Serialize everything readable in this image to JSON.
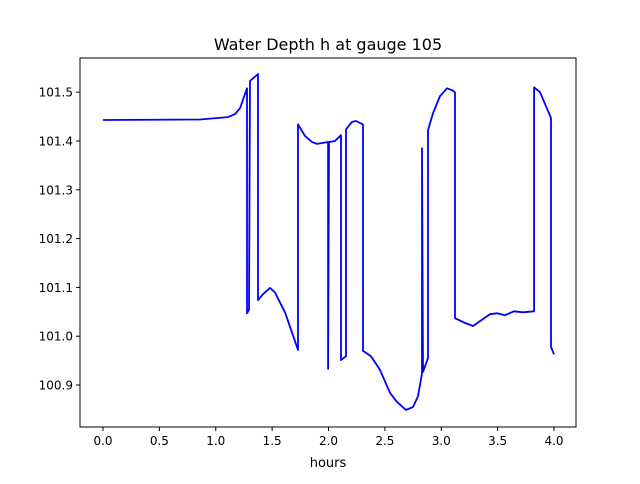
{
  "chart_data": {
    "type": "line",
    "title": "Water Depth h at gauge 105",
    "xlabel": "hours",
    "ylabel": "",
    "xlim": [
      -0.204,
      4.195
    ],
    "ylim": [
      100.814,
      101.57
    ],
    "grid": false,
    "x_ticks": [
      0.0,
      0.5,
      1.0,
      1.5,
      2.0,
      2.5,
      3.0,
      3.5,
      4.0
    ],
    "x_tick_labels": [
      "0.0",
      "0.5",
      "1.0",
      "1.5",
      "2.0",
      "2.5",
      "3.0",
      "3.5",
      "4.0"
    ],
    "y_ticks": [
      100.9,
      101.0,
      101.1,
      101.2,
      101.3,
      101.4,
      101.5
    ],
    "y_tick_labels": [
      "100.9",
      "101.0",
      "101.1",
      "101.2",
      "101.3",
      "101.4",
      "101.5"
    ],
    "series": [
      {
        "name": "h",
        "color": "#0000ff",
        "x": [
          0,
          0.86,
          1.109,
          1.171,
          1.215,
          1.277,
          1.277,
          1.295,
          1.304,
          1.375,
          1.375,
          1.419,
          1.481,
          1.525,
          1.614,
          1.668,
          1.729,
          1.729,
          1.792,
          1.854,
          1.898,
          1.996,
          1.996,
          2.004,
          2.058,
          2.111,
          2.111,
          2.155,
          2.155,
          2.208,
          2.244,
          2.306,
          2.306,
          2.377,
          2.457,
          2.545,
          2.608,
          2.687,
          2.749,
          2.794,
          2.829,
          2.829,
          2.838,
          2.882,
          2.882,
          2.927,
          2.989,
          3.051,
          3.096,
          3.122,
          3.122,
          3.211,
          3.282,
          3.344,
          3.432,
          3.494,
          3.565,
          3.645,
          3.725,
          3.823,
          3.823,
          3.876,
          3.973,
          3.973,
          4.0
        ],
        "y": [
          101.443,
          101.444,
          101.449,
          101.455,
          101.467,
          101.508,
          101.047,
          101.054,
          101.523,
          101.537,
          101.074,
          101.086,
          101.099,
          101.09,
          101.049,
          101.013,
          100.972,
          101.434,
          101.41,
          101.398,
          101.394,
          101.398,
          100.933,
          101.398,
          101.4,
          101.412,
          100.951,
          100.959,
          101.424,
          101.439,
          101.441,
          101.434,
          100.97,
          100.959,
          100.931,
          100.884,
          100.865,
          100.849,
          100.855,
          100.877,
          100.924,
          101.385,
          100.927,
          100.955,
          101.422,
          101.457,
          101.492,
          101.508,
          101.504,
          101.5,
          101.037,
          101.027,
          101.021,
          101.031,
          101.045,
          101.047,
          101.043,
          101.051,
          101.049,
          101.051,
          101.51,
          101.5,
          101.447,
          100.978,
          100.963
        ]
      }
    ]
  }
}
